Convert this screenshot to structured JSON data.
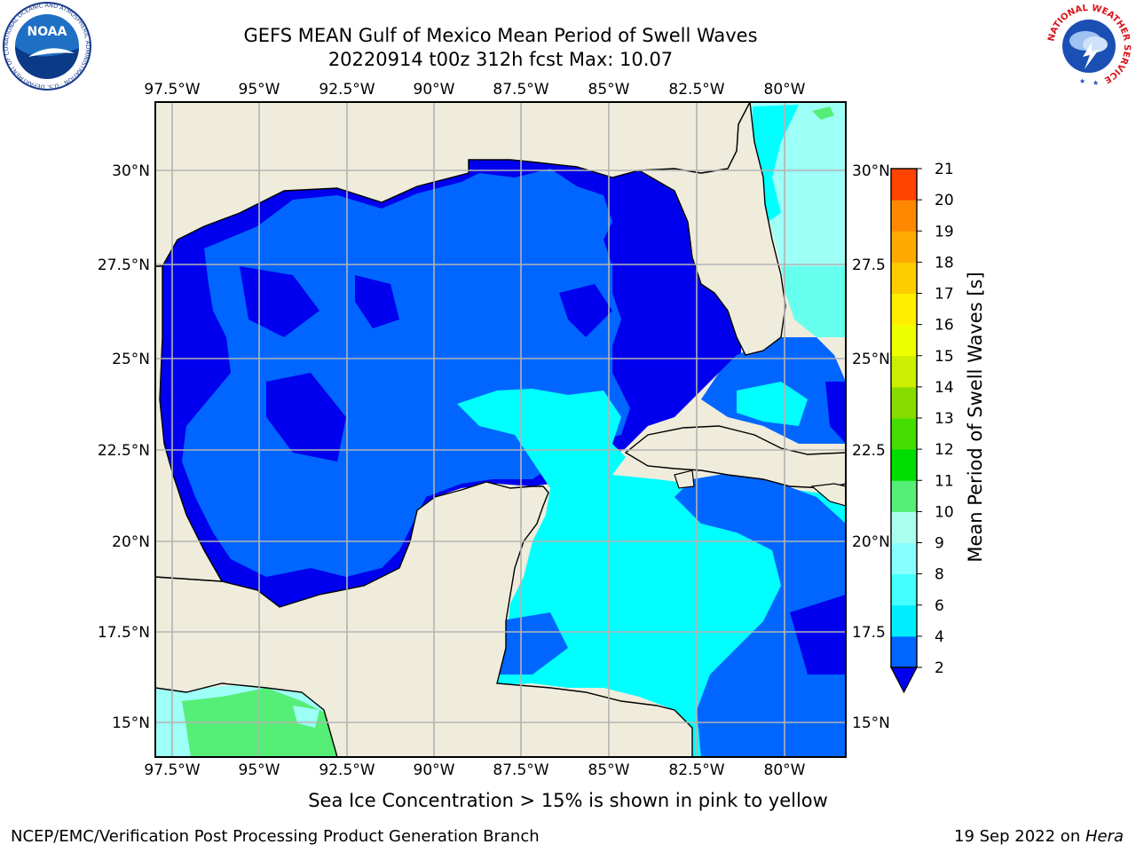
{
  "header": {
    "title": "GEFS MEAN Gulf of Mexico Mean Period of Swell Waves",
    "subtitle": "20220914 t00z 312h fcst   Max: 10.07"
  },
  "map": {
    "lon_labels": [
      "97.5°W",
      "95°W",
      "92.5°W",
      "90°W",
      "87.5°W",
      "85°W",
      "82.5°W",
      "80°W"
    ],
    "lat_labels": [
      "30°N",
      "27.5°N",
      "25°N",
      "22.5°N",
      "20°N",
      "17.5°N",
      "15°N"
    ],
    "right_lat_labels": [
      "30°N",
      "27.5",
      "25°N",
      "22.5",
      "20°N",
      "17.5",
      "15°N"
    ],
    "land_color": "#efecdc",
    "ocean_colors": [
      "#0000ee",
      "#0066ff",
      "#00ffff",
      "#66ffee",
      "#9efff7",
      "#55ee77"
    ]
  },
  "colorbar": {
    "label": "Mean Period of Swell Waves [s]",
    "ticks": [
      "2",
      "4",
      "6",
      "8",
      "9",
      "10",
      "11",
      "12",
      "13",
      "14",
      "15",
      "16",
      "17",
      "18",
      "19",
      "20",
      "21"
    ],
    "colors": [
      "#0066ff",
      "#00eeff",
      "#44ffff",
      "#88ffff",
      "#aaffee",
      "#55ee77",
      "#00dd00",
      "#44dd00",
      "#88dd00",
      "#ccee00",
      "#eeff00",
      "#ffee00",
      "#ffcc00",
      "#ffaa00",
      "#ff8800",
      "#ff4400",
      "#ff0000"
    ],
    "under_color": "#0000ee"
  },
  "note": "Sea Ice Concentration > 15% is shown in pink to yellow",
  "footer": {
    "left": "NCEP/EMC/Verification Post Processing Product Generation Branch",
    "right_prefix": "19 Sep 2022 on ",
    "right_machine": "Hera"
  },
  "logos": {
    "noaa_text": "NOAA",
    "noaa_ring": "NATIONAL OCEANIC AND ATMOSPHERIC ADMINISTRATION · U.S. DEPARTMENT OF COMMERCE",
    "nws_ring": "NATIONAL WEATHER SERVICE"
  }
}
